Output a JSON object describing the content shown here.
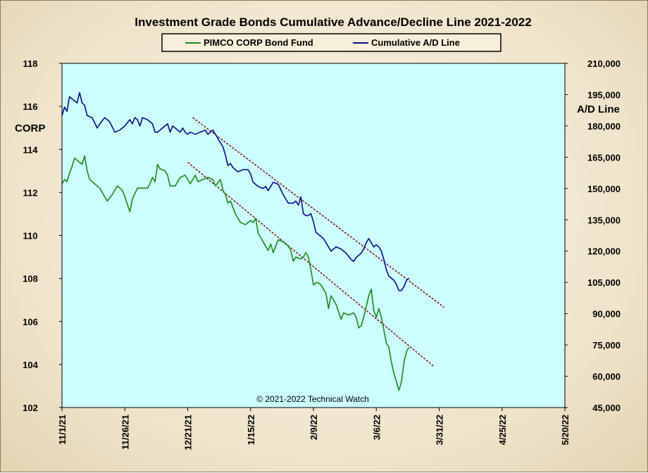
{
  "chart_data": {
    "type": "line",
    "title": "Investment  Grade Bonds Cumulative  Advance/Decline  Line 2021-2022",
    "credit": "© 2021-2022  Technical Watch",
    "y_left_label": "CORP",
    "y_right_label": "A/D Line",
    "legend_position": "top-center",
    "grid": false,
    "x_start_date": "2021-11-01",
    "x_end_date": "2022-05-20",
    "x_ticks": [
      "11/1/21",
      "11/26/21",
      "12/21/21",
      "1/15/22",
      "2/9/22",
      "3/6/22",
      "3/31/22",
      "4/25/22",
      "5/20/22"
    ],
    "y_left_ticks": [
      "102",
      "104",
      "106",
      "108",
      "110",
      "112",
      "114",
      "116",
      "118"
    ],
    "y_left_lim": [
      102,
      118
    ],
    "y_right_ticks": [
      "45,000",
      "60,000",
      "75,000",
      "90,000",
      "105,000",
      "120,000",
      "135,000",
      "150,000",
      "165,000",
      "180,000",
      "195,000",
      "210,000"
    ],
    "y_right_lim": [
      45000,
      210000
    ],
    "series": [
      {
        "name": "PIMCO CORP Bond Fund",
        "axis": "left",
        "color": "#1a8a1a",
        "points": [
          [
            "2021-11-01",
            112.4
          ],
          [
            "2021-11-02",
            112.6
          ],
          [
            "2021-11-03",
            112.5
          ],
          [
            "2021-11-04",
            112.9
          ],
          [
            "2021-11-05",
            113.2
          ],
          [
            "2021-11-06",
            113.6
          ],
          [
            "2021-11-08",
            113.4
          ],
          [
            "2021-11-09",
            113.3
          ],
          [
            "2021-11-10",
            113.7
          ],
          [
            "2021-11-11",
            113.0
          ],
          [
            "2021-11-12",
            112.6
          ],
          [
            "2021-11-14",
            112.4
          ],
          [
            "2021-11-16",
            112.2
          ],
          [
            "2021-11-18",
            111.8
          ],
          [
            "2021-11-19",
            111.6
          ],
          [
            "2021-11-21",
            111.9
          ],
          [
            "2021-11-23",
            112.3
          ],
          [
            "2021-11-25",
            112.1
          ],
          [
            "2021-11-26",
            111.8
          ],
          [
            "2021-11-28",
            111.1
          ],
          [
            "2021-11-29",
            111.7
          ],
          [
            "2021-12-01",
            112.2
          ],
          [
            "2021-12-03",
            112.2
          ],
          [
            "2021-12-05",
            112.2
          ],
          [
            "2021-12-06",
            112.4
          ],
          [
            "2021-12-07",
            112.7
          ],
          [
            "2021-12-08",
            112.5
          ],
          [
            "2021-12-09",
            113.3
          ],
          [
            "2021-12-10",
            113.1
          ],
          [
            "2021-12-12",
            113.0
          ],
          [
            "2021-12-13",
            112.8
          ],
          [
            "2021-12-14",
            112.3
          ],
          [
            "2021-12-16",
            112.3
          ],
          [
            "2021-12-18",
            112.7
          ],
          [
            "2021-12-20",
            112.8
          ],
          [
            "2021-12-21",
            112.6
          ],
          [
            "2021-12-22",
            112.4
          ],
          [
            "2021-12-24",
            112.8
          ],
          [
            "2021-12-25",
            112.5
          ],
          [
            "2021-12-27",
            112.6
          ],
          [
            "2021-12-29",
            112.7
          ],
          [
            "2021-12-31",
            112.6
          ],
          [
            "2022-01-01",
            112.3
          ],
          [
            "2022-01-03",
            112.6
          ],
          [
            "2022-01-04",
            112.1
          ],
          [
            "2022-01-05",
            111.9
          ],
          [
            "2022-01-06",
            111.5
          ],
          [
            "2022-01-07",
            111.6
          ],
          [
            "2022-01-09",
            111.0
          ],
          [
            "2022-01-11",
            110.6
          ],
          [
            "2022-01-13",
            110.5
          ],
          [
            "2022-01-15",
            110.7
          ],
          [
            "2022-01-16",
            110.6
          ],
          [
            "2022-01-17",
            110.8
          ],
          [
            "2022-01-18",
            110.1
          ],
          [
            "2022-01-20",
            109.7
          ],
          [
            "2022-01-22",
            109.3
          ],
          [
            "2022-01-23",
            109.6
          ],
          [
            "2022-01-24",
            109.2
          ],
          [
            "2022-01-26",
            109.8
          ],
          [
            "2022-01-28",
            109.7
          ],
          [
            "2022-01-30",
            109.5
          ],
          [
            "2022-01-31",
            109.3
          ],
          [
            "2022-02-01",
            108.8
          ],
          [
            "2022-02-02",
            109.0
          ],
          [
            "2022-02-04",
            108.9
          ],
          [
            "2022-02-05",
            109.0
          ],
          [
            "2022-02-06",
            109.2
          ],
          [
            "2022-02-07",
            109.0
          ],
          [
            "2022-02-08",
            108.4
          ],
          [
            "2022-02-09",
            107.7
          ],
          [
            "2022-02-10",
            107.8
          ],
          [
            "2022-02-11",
            107.8
          ],
          [
            "2022-02-12",
            107.7
          ],
          [
            "2022-02-14",
            107.3
          ],
          [
            "2022-02-15",
            106.6
          ],
          [
            "2022-02-16",
            107.2
          ],
          [
            "2022-02-18",
            106.8
          ],
          [
            "2022-02-20",
            106.1
          ],
          [
            "2022-02-21",
            106.4
          ],
          [
            "2022-02-23",
            106.3
          ],
          [
            "2022-02-25",
            106.4
          ],
          [
            "2022-02-26",
            106.2
          ],
          [
            "2022-02-27",
            105.7
          ],
          [
            "2022-02-28",
            105.8
          ],
          [
            "2022-03-01",
            106.2
          ],
          [
            "2022-03-02",
            106.7
          ],
          [
            "2022-03-03",
            107.2
          ],
          [
            "2022-03-04",
            107.5
          ],
          [
            "2022-03-05",
            106.5
          ],
          [
            "2022-03-06",
            106.2
          ],
          [
            "2022-03-07",
            106.6
          ],
          [
            "2022-03-08",
            106.2
          ],
          [
            "2022-03-09",
            105.6
          ],
          [
            "2022-03-10",
            105.0
          ],
          [
            "2022-03-11",
            104.8
          ],
          [
            "2022-03-12",
            104.1
          ],
          [
            "2022-03-13",
            103.6
          ],
          [
            "2022-03-14",
            103.2
          ],
          [
            "2022-03-15",
            102.8
          ],
          [
            "2022-03-16",
            103.2
          ],
          [
            "2022-03-17",
            104.1
          ],
          [
            "2022-03-18",
            104.6
          ],
          [
            "2022-03-19",
            104.8
          ]
        ]
      },
      {
        "name": "Cumulative A/D Line",
        "axis": "right",
        "color": "#0a0a8c",
        "points": [
          [
            "2021-11-01",
            185000
          ],
          [
            "2021-11-02",
            189000
          ],
          [
            "2021-11-03",
            187000
          ],
          [
            "2021-11-04",
            194000
          ],
          [
            "2021-11-05",
            193000
          ],
          [
            "2021-11-07",
            191000
          ],
          [
            "2021-11-08",
            196000
          ],
          [
            "2021-11-09",
            191000
          ],
          [
            "2021-11-10",
            190000
          ],
          [
            "2021-11-11",
            185000
          ],
          [
            "2021-11-13",
            184000
          ],
          [
            "2021-11-15",
            179000
          ],
          [
            "2021-11-16",
            181000
          ],
          [
            "2021-11-18",
            184000
          ],
          [
            "2021-11-20",
            182000
          ],
          [
            "2021-11-22",
            177000
          ],
          [
            "2021-11-24",
            178000
          ],
          [
            "2021-11-26",
            180000
          ],
          [
            "2021-11-28",
            183000
          ],
          [
            "2021-11-29",
            181000
          ],
          [
            "2021-11-30",
            184000
          ],
          [
            "2021-12-01",
            183000
          ],
          [
            "2021-12-02",
            180000
          ],
          [
            "2021-12-03",
            184000
          ],
          [
            "2021-12-05",
            183000
          ],
          [
            "2021-12-07",
            181000
          ],
          [
            "2021-12-08",
            177000
          ],
          [
            "2021-12-09",
            177000
          ],
          [
            "2021-12-11",
            179000
          ],
          [
            "2021-12-13",
            181000
          ],
          [
            "2021-12-14",
            177000
          ],
          [
            "2021-12-15",
            180000
          ],
          [
            "2021-12-16",
            179000
          ],
          [
            "2021-12-18",
            177000
          ],
          [
            "2021-12-19",
            179000
          ],
          [
            "2021-12-20",
            177000
          ],
          [
            "2021-12-21",
            176000
          ],
          [
            "2021-12-22",
            177000
          ],
          [
            "2021-12-24",
            176000
          ],
          [
            "2021-12-26",
            177000
          ],
          [
            "2021-12-28",
            178000
          ],
          [
            "2021-12-29",
            176000
          ],
          [
            "2021-12-30",
            177000
          ],
          [
            "2021-12-31",
            178000
          ],
          [
            "2022-01-01",
            176000
          ],
          [
            "2022-01-03",
            172000
          ],
          [
            "2022-01-04",
            170000
          ],
          [
            "2022-01-05",
            166000
          ],
          [
            "2022-01-06",
            161000
          ],
          [
            "2022-01-07",
            162000
          ],
          [
            "2022-01-08",
            160000
          ],
          [
            "2022-01-10",
            158000
          ],
          [
            "2022-01-12",
            159000
          ],
          [
            "2022-01-14",
            159000
          ],
          [
            "2022-01-15",
            157000
          ],
          [
            "2022-01-16",
            153000
          ],
          [
            "2022-01-17",
            152000
          ],
          [
            "2022-01-18",
            151000
          ],
          [
            "2022-01-20",
            150000
          ],
          [
            "2022-01-21",
            151000
          ],
          [
            "2022-01-22",
            149000
          ],
          [
            "2022-01-24",
            153000
          ],
          [
            "2022-01-26",
            152000
          ],
          [
            "2022-01-28",
            147000
          ],
          [
            "2022-01-30",
            143000
          ],
          [
            "2022-02-01",
            143000
          ],
          [
            "2022-02-02",
            144000
          ],
          [
            "2022-02-03",
            142000
          ],
          [
            "2022-02-04",
            146000
          ],
          [
            "2022-02-05",
            138000
          ],
          [
            "2022-02-06",
            137000
          ],
          [
            "2022-02-07",
            137000
          ],
          [
            "2022-02-08",
            138000
          ],
          [
            "2022-02-09",
            134000
          ],
          [
            "2022-02-10",
            129000
          ],
          [
            "2022-02-11",
            128000
          ],
          [
            "2022-02-13",
            126000
          ],
          [
            "2022-02-15",
            122000
          ],
          [
            "2022-02-16",
            120000
          ],
          [
            "2022-02-18",
            122000
          ],
          [
            "2022-02-20",
            121000
          ],
          [
            "2022-02-22",
            119000
          ],
          [
            "2022-02-24",
            116000
          ],
          [
            "2022-02-25",
            115000
          ],
          [
            "2022-02-26",
            117000
          ],
          [
            "2022-02-28",
            119000
          ],
          [
            "2022-03-01",
            121000
          ],
          [
            "2022-03-02",
            124000
          ],
          [
            "2022-03-03",
            126000
          ],
          [
            "2022-03-04",
            124000
          ],
          [
            "2022-03-05",
            122000
          ],
          [
            "2022-03-06",
            123000
          ],
          [
            "2022-03-07",
            122000
          ],
          [
            "2022-03-08",
            120000
          ],
          [
            "2022-03-09",
            116000
          ],
          [
            "2022-03-10",
            111000
          ],
          [
            "2022-03-11",
            108000
          ],
          [
            "2022-03-13",
            106000
          ],
          [
            "2022-03-14",
            104000
          ],
          [
            "2022-03-15",
            101000
          ],
          [
            "2022-03-16",
            101000
          ],
          [
            "2022-03-17",
            103000
          ],
          [
            "2022-03-18",
            106000
          ],
          [
            "2022-03-19",
            107000
          ]
        ]
      }
    ],
    "trendlines": [
      {
        "axis": "left",
        "start": [
          "2021-12-21",
          113.4
        ],
        "end": [
          "2022-03-29",
          103.9
        ],
        "color": "#8b1a1a",
        "style": "dashed"
      },
      {
        "axis": "right",
        "start": [
          "2021-12-23",
          184000
        ],
        "end": [
          "2022-04-02",
          93000
        ],
        "color": "#8b1a1a",
        "style": "dashed"
      }
    ]
  }
}
